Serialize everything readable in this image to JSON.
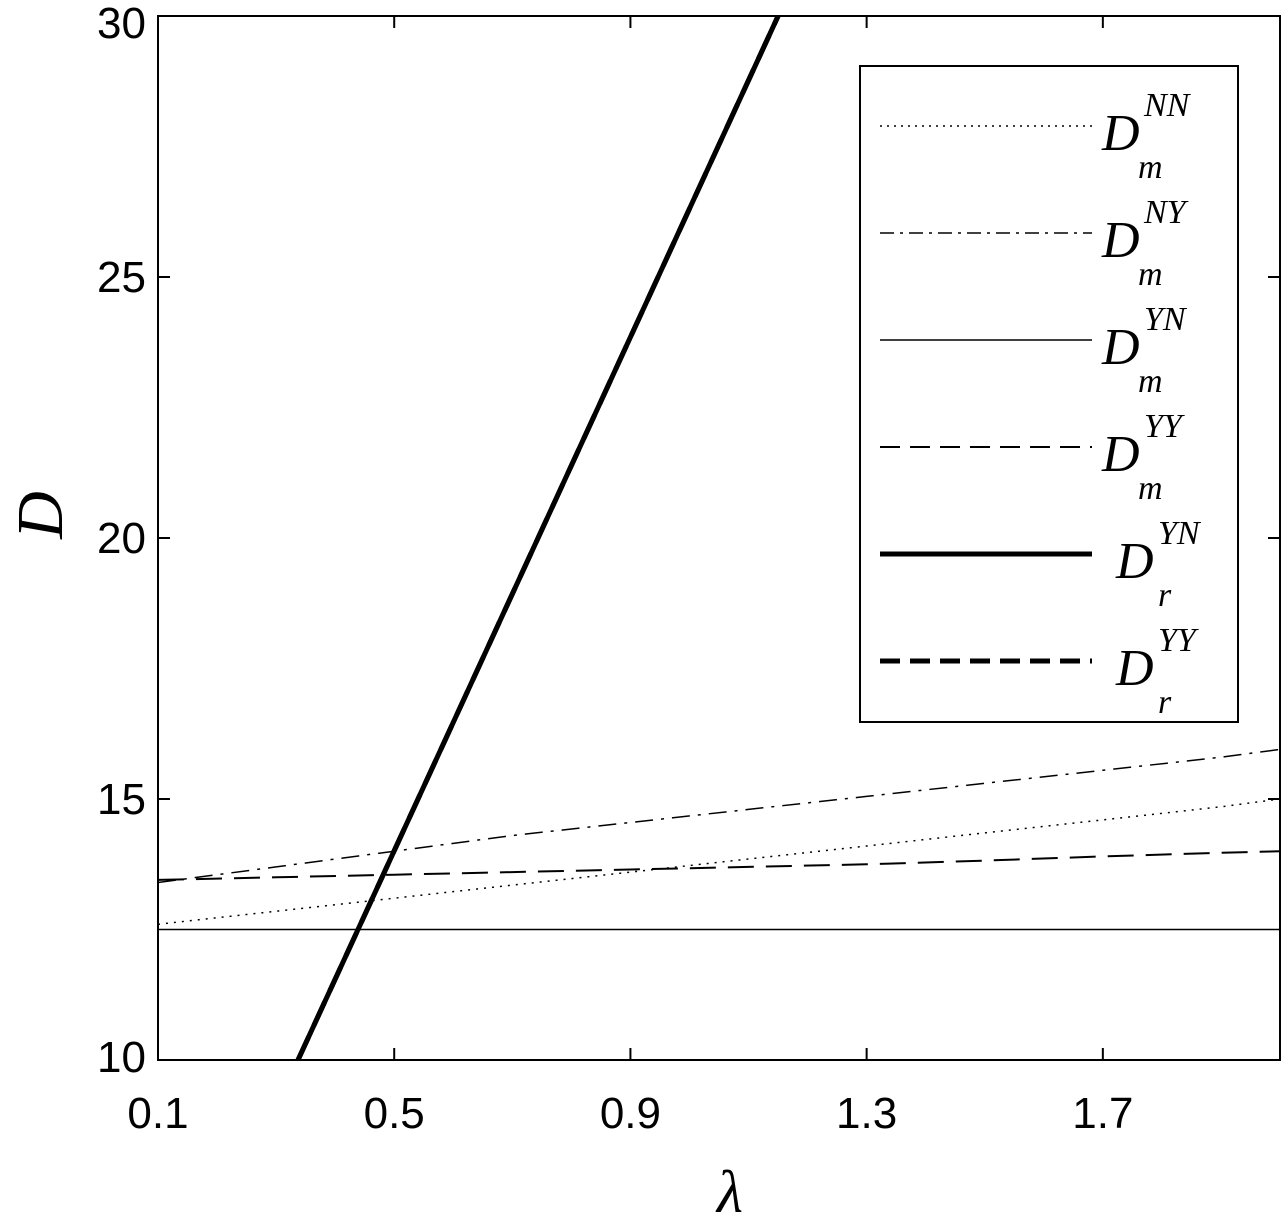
{
  "chart_data": {
    "type": "line",
    "xlabel": "λ",
    "ylabel": "D",
    "xlim": [
      0.1,
      2.0
    ],
    "ylim": [
      10,
      30
    ],
    "xticks": [
      0.1,
      0.5,
      0.9,
      1.3,
      1.7
    ],
    "xtick_labels": [
      "0.1",
      "0.5",
      "0.9",
      "1.3",
      "1.7"
    ],
    "yticks": [
      10,
      15,
      20,
      25,
      30
    ],
    "ytick_labels": [
      "10",
      "15",
      "20",
      "25",
      "30"
    ],
    "grid": false,
    "legend_position": "top-right",
    "series": [
      {
        "name": "D_m^NN",
        "base": "D",
        "sup": "NN",
        "sub": "m",
        "style": "dotted",
        "width": 1.5,
        "color": "#000000",
        "x": [
          0.1,
          0.3,
          0.5,
          0.7,
          0.9,
          1.1,
          1.3,
          1.5,
          1.7,
          1.9,
          2.0
        ],
        "y": [
          12.6,
          12.85,
          13.1,
          13.35,
          13.6,
          13.85,
          14.1,
          14.35,
          14.6,
          14.85,
          15.0
        ]
      },
      {
        "name": "D_m^NY",
        "base": "D",
        "sup": "NY",
        "sub": "m",
        "style": "dashdot",
        "width": 1.5,
        "color": "#000000",
        "x": [
          0.1,
          0.3,
          0.5,
          0.7,
          0.9,
          1.1,
          1.3,
          1.5,
          1.7,
          1.9,
          2.0
        ],
        "y": [
          13.4,
          13.7,
          14.0,
          14.3,
          14.55,
          14.8,
          15.05,
          15.3,
          15.55,
          15.8,
          15.95
        ]
      },
      {
        "name": "D_m^YN",
        "base": "D",
        "sup": "YN",
        "sub": "m",
        "style": "solid",
        "width": 1.5,
        "color": "#000000",
        "x": [
          0.1,
          2.0
        ],
        "y": [
          12.5,
          12.5
        ]
      },
      {
        "name": "D_m^YY",
        "base": "D",
        "sup": "YY",
        "sub": "m",
        "style": "dashed",
        "width": 2,
        "color": "#000000",
        "x": [
          0.1,
          0.3,
          0.5,
          0.7,
          0.9,
          1.1,
          1.3,
          1.5,
          1.7,
          1.9,
          2.0
        ],
        "y": [
          13.45,
          13.5,
          13.55,
          13.6,
          13.65,
          13.7,
          13.75,
          13.82,
          13.9,
          13.97,
          14.0
        ]
      },
      {
        "name": "D_r^YN",
        "base": "D",
        "sup": "YN",
        "sub": "r",
        "style": "solid",
        "width": 5,
        "color": "#000000",
        "x": [
          0.337,
          1.15
        ],
        "y": [
          10,
          30
        ]
      },
      {
        "name": "D_r^YY",
        "base": "D",
        "sup": "YY",
        "sub": "r",
        "style": "dashed",
        "width": 5,
        "color": "#000000",
        "x": [
          0.337,
          1.15
        ],
        "y": [
          10,
          30
        ]
      }
    ]
  }
}
